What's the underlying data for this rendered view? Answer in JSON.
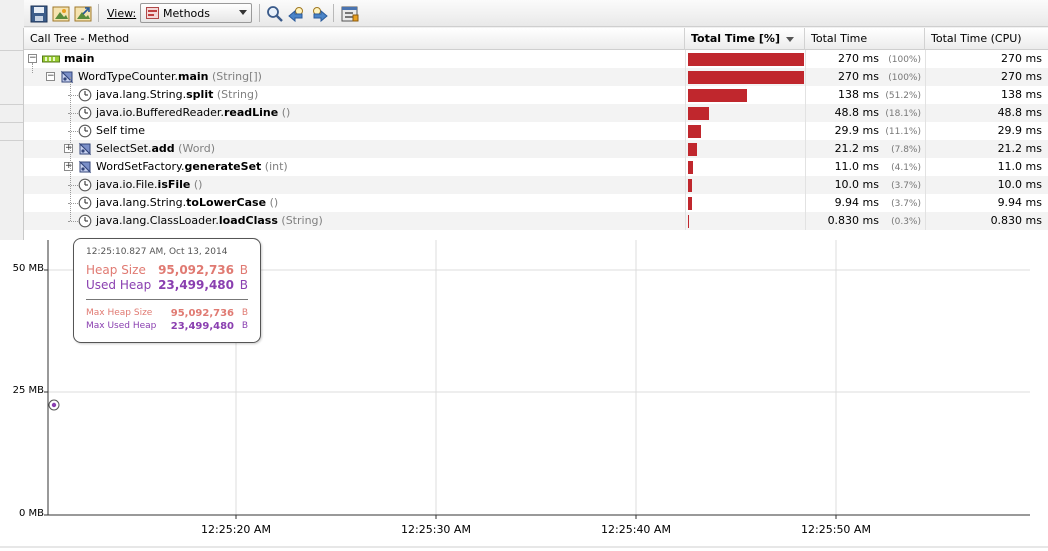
{
  "toolbar": {
    "view_label": "View:",
    "view_selected": "Methods"
  },
  "table": {
    "headers": {
      "method": "Call Tree - Method",
      "total_pct": "Total Time [%]",
      "total_time": "Total Time",
      "total_cpu": "Total Time (CPU)"
    },
    "rows": [
      {
        "cls": "",
        "method": "main",
        "args": "",
        "pct_text": "(100%)",
        "pct": 100,
        "time": "270 ms",
        "cpu": "270 ms"
      },
      {
        "cls": "WordTypeCounter.",
        "method": "main",
        "args": "(String[])",
        "pct_text": "(100%)",
        "pct": 100,
        "time": "270 ms",
        "cpu": "270 ms"
      },
      {
        "cls": "java.lang.String.",
        "method": "split",
        "args": "(String)",
        "pct_text": "(51.2%)",
        "pct": 51.2,
        "time": "138 ms",
        "cpu": "138 ms"
      },
      {
        "cls": "java.io.BufferedReader.",
        "method": "readLine",
        "args": "()",
        "pct_text": "(18.1%)",
        "pct": 18.1,
        "time": "48.8 ms",
        "cpu": "48.8 ms"
      },
      {
        "cls": "",
        "method": "Self time",
        "args": "",
        "pct_text": "(11.1%)",
        "pct": 11.1,
        "time": "29.9 ms",
        "cpu": "29.9 ms"
      },
      {
        "cls": "SelectSet.",
        "method": "add",
        "args": "(Word)",
        "pct_text": "(7.8%)",
        "pct": 7.8,
        "time": "21.2 ms",
        "cpu": "21.2 ms"
      },
      {
        "cls": "WordSetFactory.",
        "method": "generateSet",
        "args": "(int)",
        "pct_text": "(4.1%)",
        "pct": 4.1,
        "time": "11.0 ms",
        "cpu": "11.0 ms"
      },
      {
        "cls": "java.io.File.",
        "method": "isFile",
        "args": "()",
        "pct_text": "(3.7%)",
        "pct": 3.7,
        "time": "10.0 ms",
        "cpu": "10.0 ms"
      },
      {
        "cls": "java.lang.String.",
        "method": "toLowerCase",
        "args": "()",
        "pct_text": "(3.7%)",
        "pct": 3.7,
        "time": "9.94 ms",
        "cpu": "9.94 ms"
      },
      {
        "cls": "java.lang.ClassLoader.",
        "method": "loadClass",
        "args": "(String)",
        "pct_text": "(0.3%)",
        "pct": 0.3,
        "time": "0.830 ms",
        "cpu": "0.830 ms"
      }
    ]
  },
  "memory_chart": {
    "y_ticks": [
      "50 MB",
      "25 MB",
      "0 MB"
    ],
    "x_ticks": [
      "12:25:20 AM",
      "12:25:30 AM",
      "12:25:40 AM",
      "12:25:50 AM"
    ]
  },
  "tooltip": {
    "timestamp": "12:25:10.827 AM, Oct 13, 2014",
    "heap_size_label": "Heap Size",
    "heap_size_value": "95,092,736",
    "used_heap_label": "Used Heap",
    "used_heap_value": "23,499,480",
    "max_heap_size_label": "Max Heap Size",
    "max_heap_size_value": "95,092,736",
    "max_used_heap_label": "Max Used Heap",
    "max_used_heap_value": "23,499,480",
    "unit": "B"
  },
  "colors": {
    "bar": "#c0272d",
    "heap": "#e07a72",
    "used": "#8a3fb0"
  }
}
